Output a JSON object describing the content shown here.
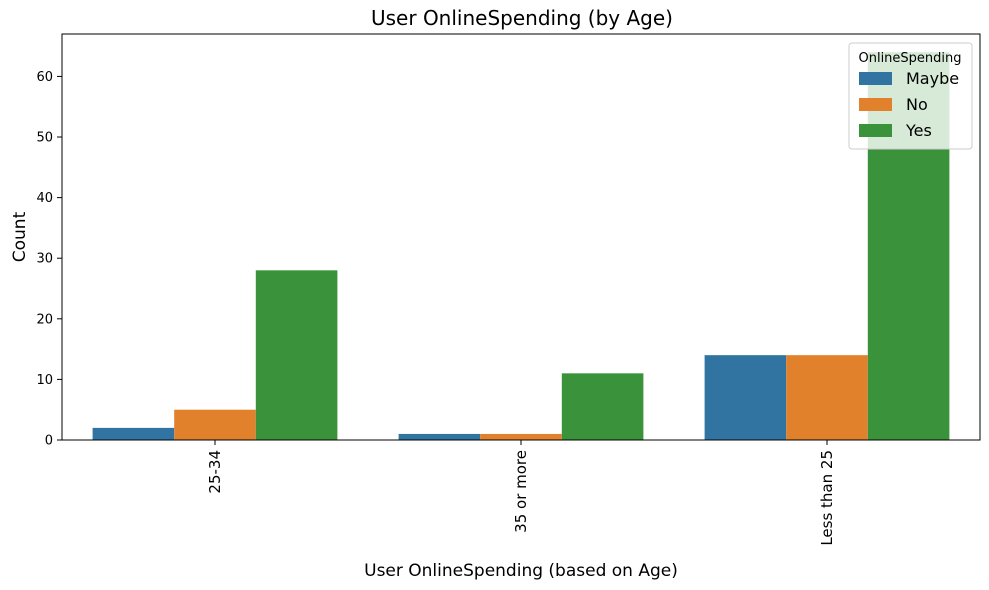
{
  "chart_data": {
    "type": "bar",
    "title": "User OnlineSpending (by Age)",
    "xlabel": "User OnlineSpending (based on Age)",
    "ylabel": "Count",
    "categories": [
      "25-34",
      "35 or more",
      "Less than 25"
    ],
    "series": [
      {
        "name": "Maybe",
        "values": [
          2,
          1,
          14
        ],
        "color": "#3274a1"
      },
      {
        "name": "No",
        "values": [
          5,
          1,
          14
        ],
        "color": "#e1812c"
      },
      {
        "name": "Yes",
        "values": [
          28,
          11,
          64
        ],
        "color": "#3a923a"
      }
    ],
    "ylim": [
      0,
      67
    ],
    "yticks": [
      0,
      10,
      20,
      30,
      40,
      50,
      60
    ],
    "legend": {
      "title": "OnlineSpending",
      "position": "top-right"
    },
    "grid": false
  }
}
